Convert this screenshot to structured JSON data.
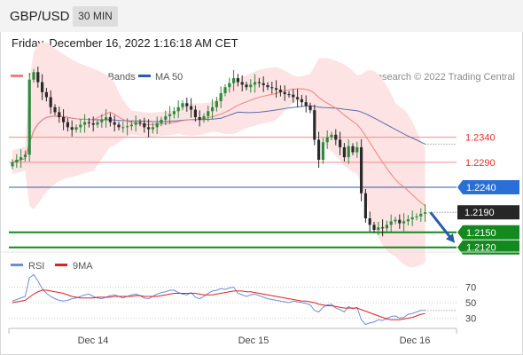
{
  "header": {
    "symbol": "GBP/USD",
    "timeframe": "30 MIN"
  },
  "datetime": "Friday, December 16, 2022 1:16:18 AM CET",
  "legend": {
    "ma20_label": "MA 20 + Bollinger Bands",
    "ma50_label": "MA 50",
    "rsi_label": "RSI",
    "rsi_ma_label": "9MA"
  },
  "credit": "Research © 2022 Trading Central",
  "colors": {
    "up": "#2e8b3d",
    "down": "#2a2a2a",
    "ma20": "#f08080",
    "bb_fill": "#fde3e3",
    "ma50": "#5a6fa8",
    "resistance": "#f28b8b",
    "res_text": "#e0312f",
    "pivot": "#2a5cab",
    "pivot_tag": "#2a6fd6",
    "support": "#14891e",
    "current_tag": "#262626",
    "arrow": "#2a5cab",
    "rsi": "#6a8fd8",
    "rsi_ma": "#e02020"
  },
  "chart_data": [
    {
      "type": "candlestick",
      "title": "",
      "x_tick_labels": [
        "Dec 14",
        "Dec 15",
        "Dec 16"
      ],
      "ylim": [
        1.21,
        1.249
      ],
      "levels": [
        {
          "label": "1.2340",
          "value": 1.234,
          "kind": "resistance"
        },
        {
          "label": "1.2290",
          "value": 1.229,
          "kind": "resistance"
        },
        {
          "label": "1.2240",
          "value": 1.224,
          "kind": "pivot"
        },
        {
          "label": "1.2190",
          "value": 1.219,
          "kind": "current"
        },
        {
          "label": "1.2150",
          "value": 1.215,
          "kind": "support"
        },
        {
          "label": "1.2120",
          "value": 1.212,
          "kind": "support"
        }
      ],
      "close": [
        1.229,
        1.2295,
        1.23,
        1.2305,
        1.2455,
        1.247,
        1.245,
        1.243,
        1.242,
        1.24,
        1.239,
        1.238,
        1.237,
        1.236,
        1.2355,
        1.236,
        1.2365,
        1.237,
        1.2368,
        1.2365,
        1.237,
        1.2375,
        1.238,
        1.237,
        1.2365,
        1.236,
        1.236,
        1.2362,
        1.2365,
        1.237,
        1.2368,
        1.236,
        1.2356,
        1.236,
        1.2368,
        1.2375,
        1.2382,
        1.2386,
        1.2392,
        1.24,
        1.2408,
        1.2402,
        1.2395,
        1.238,
        1.2375,
        1.2382,
        1.2392,
        1.24,
        1.2412,
        1.2428,
        1.244,
        1.2448,
        1.2458,
        1.245,
        1.2445,
        1.244,
        1.2445,
        1.245,
        1.2448,
        1.2444,
        1.244,
        1.2438,
        1.2435,
        1.243,
        1.2426,
        1.2425,
        1.242,
        1.2416,
        1.241,
        1.2403,
        1.2394,
        1.2335,
        1.2295,
        1.233,
        1.234,
        1.2345,
        1.2335,
        1.232,
        1.23,
        1.2322,
        1.231,
        1.232,
        1.2228,
        1.2178,
        1.2165,
        1.2155,
        1.216,
        1.2158,
        1.2165,
        1.2172,
        1.2175,
        1.2168,
        1.2172,
        1.2176,
        1.218,
        1.2182,
        1.2187,
        1.219
      ],
      "series": [
        {
          "name": "MA 20",
          "note": "upper/lower Bollinger bands shaded"
        },
        {
          "name": "MA 50"
        }
      ]
    },
    {
      "type": "line",
      "title": "",
      "yticks": [
        70,
        50,
        30
      ],
      "ylim": [
        10,
        90
      ],
      "series": [
        {
          "name": "RSI",
          "values": [
            52,
            54,
            56,
            58,
            82,
            86,
            78,
            68,
            62,
            58,
            55,
            53,
            52,
            53,
            55,
            56,
            58,
            60,
            61,
            58,
            56,
            55,
            57,
            59,
            60,
            58,
            56,
            58,
            60,
            61,
            59,
            56,
            55,
            58,
            61,
            63,
            64,
            66,
            66,
            63,
            61,
            60,
            63,
            57,
            55,
            58,
            62,
            65,
            66,
            68,
            67,
            69,
            70,
            62,
            60,
            58,
            60,
            61,
            59,
            57,
            55,
            54,
            53,
            52,
            51,
            50,
            52,
            51,
            50,
            49,
            47,
            40,
            38,
            44,
            47,
            48,
            43,
            41,
            38,
            45,
            42,
            44,
            28,
            22,
            24,
            25,
            28,
            27,
            30,
            32,
            33,
            30,
            31,
            35,
            36,
            38,
            40,
            40
          ]
        },
        {
          "name": "9MA",
          "values": [
            50,
            51,
            52,
            53,
            57,
            61,
            64,
            66,
            66,
            65,
            64,
            63,
            62,
            60,
            58,
            57,
            56,
            56,
            56,
            56,
            57,
            57,
            57,
            57,
            58,
            58,
            58,
            58,
            58,
            59,
            59,
            58,
            58,
            58,
            58,
            59,
            60,
            61,
            62,
            62,
            62,
            62,
            62,
            62,
            61,
            60,
            60,
            60,
            61,
            62,
            63,
            64,
            65,
            65,
            65,
            64,
            64,
            63,
            62,
            61,
            60,
            59,
            58,
            57,
            56,
            55,
            54,
            53,
            52,
            52,
            51,
            50,
            48,
            47,
            46,
            46,
            45,
            44,
            43,
            43,
            43,
            43,
            41,
            39,
            37,
            35,
            33,
            31,
            29,
            28,
            28,
            28,
            29,
            30,
            31,
            33,
            35,
            36
          ]
        }
      ]
    }
  ]
}
